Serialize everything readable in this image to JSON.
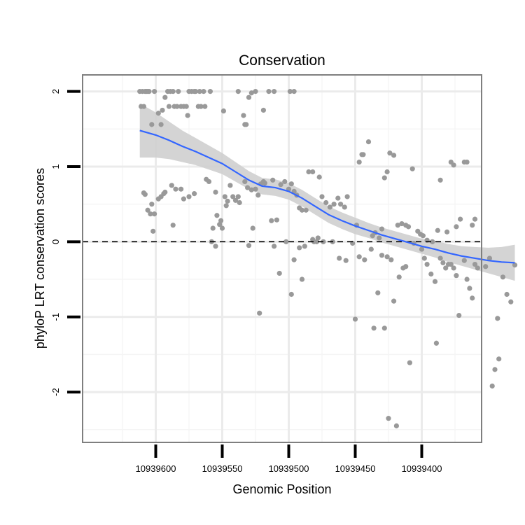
{
  "chart_data": {
    "type": "scatter",
    "title": "Conservation",
    "xlabel": "Genomic Position",
    "ylabel": "phyloP LRT conservation scores",
    "x_reversed": true,
    "xlim": [
      10939655,
      10939355
    ],
    "ylim": [
      -2.67,
      2.22
    ],
    "x_ticks": [
      10939600,
      10939550,
      10939500,
      10939450,
      10939400
    ],
    "x_tick_labels": [
      "10939600",
      "10939550",
      "10939500",
      "10939450",
      "10939400"
    ],
    "y_ticks": [
      2,
      1,
      0,
      -1,
      -2
    ],
    "y_tick_labels": [
      "2",
      "1",
      "0",
      "-1",
      "-2"
    ],
    "reference_line": {
      "y": 0,
      "style": "dashed"
    },
    "grid": true,
    "colors": {
      "points": "#999999",
      "smooth_line": "#3366ff",
      "ribbon": "#cfcfcf",
      "grid_major": "#ebebeb",
      "grid_minor": "#f5f5f5",
      "panel_border": "#7f7f7f"
    },
    "points": [
      [
        10939612,
        2.0
      ],
      [
        10939611,
        1.8
      ],
      [
        10939610,
        2.0
      ],
      [
        10939609,
        1.8
      ],
      [
        10939608,
        2.0
      ],
      [
        10939607,
        2.0
      ],
      [
        10939606,
        2.0
      ],
      [
        10939605,
        2.0
      ],
      [
        10939603,
        1.56
      ],
      [
        10939601,
        2.0
      ],
      [
        10939598,
        1.71
      ],
      [
        10939596,
        1.56
      ],
      [
        10939595,
        1.75
      ],
      [
        10939593,
        1.92
      ],
      [
        10939591,
        2.0
      ],
      [
        10939590,
        1.8
      ],
      [
        10939589,
        2.0
      ],
      [
        10939587,
        2.0
      ],
      [
        10939586,
        1.8
      ],
      [
        10939584,
        1.8
      ],
      [
        10939583,
        2.0
      ],
      [
        10939581,
        1.8
      ],
      [
        10939579,
        1.8
      ],
      [
        10939577,
        1.8
      ],
      [
        10939576,
        1.68
      ],
      [
        10939575,
        2.0
      ],
      [
        10939573,
        2.0
      ],
      [
        10939571,
        2.0
      ],
      [
        10939570,
        2.0
      ],
      [
        10939568,
        1.8
      ],
      [
        10939567,
        2.0
      ],
      [
        10939566,
        1.8
      ],
      [
        10939564,
        2.0
      ],
      [
        10939563,
        1.8
      ],
      [
        10939559,
        2.0
      ],
      [
        10939549,
        1.74
      ],
      [
        10939538,
        2.0
      ],
      [
        10939534,
        1.68
      ],
      [
        10939533,
        1.56
      ],
      [
        10939532,
        1.56
      ],
      [
        10939530,
        1.92
      ],
      [
        10939528,
        1.98
      ],
      [
        10939525,
        2.0
      ],
      [
        10939519,
        1.75
      ],
      [
        10939515,
        2.0
      ],
      [
        10939511,
        2.0
      ],
      [
        10939499,
        2.0
      ],
      [
        10939496,
        2.0
      ],
      [
        10939609,
        0.65
      ],
      [
        10939608,
        0.63
      ],
      [
        10939606,
        0.42
      ],
      [
        10939604,
        0.37
      ],
      [
        10939603,
        0.5
      ],
      [
        10939602,
        0.14
      ],
      [
        10939601,
        0.37
      ],
      [
        10939598,
        0.57
      ],
      [
        10939596,
        0.6
      ],
      [
        10939594,
        0.64
      ],
      [
        10939593,
        0.66
      ],
      [
        10939588,
        0.75
      ],
      [
        10939587,
        0.22
      ],
      [
        10939585,
        0.7
      ],
      [
        10939581,
        0.7
      ],
      [
        10939579,
        0.57
      ],
      [
        10939575,
        0.6
      ],
      [
        10939571,
        0.64
      ],
      [
        10939562,
        0.83
      ],
      [
        10939560,
        0.8
      ],
      [
        10939557,
        0.18
      ],
      [
        10939555,
        0.66
      ],
      [
        10939554,
        0.35
      ],
      [
        10939552,
        0.23
      ],
      [
        10939551,
        0.28
      ],
      [
        10939550,
        0.18
      ],
      [
        10939548,
        0.6
      ],
      [
        10939547,
        0.48
      ],
      [
        10939546,
        0.54
      ],
      [
        10939544,
        0.75
      ],
      [
        10939542,
        0.6
      ],
      [
        10939540,
        0.55
      ],
      [
        10939538,
        0.6
      ],
      [
        10939537,
        0.52
      ],
      [
        10939533,
        0.8
      ],
      [
        10939531,
        0.72
      ],
      [
        10939528,
        0.69
      ],
      [
        10939527,
        0.18
      ],
      [
        10939525,
        0.7
      ],
      [
        10939523,
        0.62
      ],
      [
        10939521,
        0.77
      ],
      [
        10939519,
        0.8
      ],
      [
        10939518,
        0.78
      ],
      [
        10939513,
        0.28
      ],
      [
        10939512,
        0.82
      ],
      [
        10939509,
        0.29
      ],
      [
        10939506,
        0.76
      ],
      [
        10939503,
        0.8
      ],
      [
        10939500,
        0.7
      ],
      [
        10939498,
        0.77
      ],
      [
        10939496,
        0.67
      ],
      [
        10939494,
        0.62
      ],
      [
        10939492,
        0.45
      ],
      [
        10939490,
        0.42
      ],
      [
        10939487,
        0.42
      ],
      [
        10939485,
        0.93
      ],
      [
        10939482,
        0.93
      ],
      [
        10939481,
        0.0
      ],
      [
        10939479,
        0.0
      ],
      [
        10939477,
        0.86
      ],
      [
        10939475,
        0.6
      ],
      [
        10939472,
        0.52
      ],
      [
        10939469,
        0.46
      ],
      [
        10939466,
        0.5
      ],
      [
        10939463,
        0.58
      ],
      [
        10939461,
        0.5
      ],
      [
        10939458,
        0.46
      ],
      [
        10939456,
        0.6
      ],
      [
        10939449,
        0.22
      ],
      [
        10939447,
        1.06
      ],
      [
        10939445,
        1.16
      ],
      [
        10939444,
        1.16
      ],
      [
        10939440,
        1.33
      ],
      [
        10939437,
        0.08
      ],
      [
        10939435,
        0.12
      ],
      [
        10939432,
        0.05
      ],
      [
        10939430,
        0.17
      ],
      [
        10939428,
        0.85
      ],
      [
        10939426,
        0.93
      ],
      [
        10939424,
        1.18
      ],
      [
        10939421,
        1.15
      ],
      [
        10939418,
        0.22
      ],
      [
        10939415,
        0.24
      ],
      [
        10939412,
        0.22
      ],
      [
        10939410,
        0.2
      ],
      [
        10939407,
        0.97
      ],
      [
        10939403,
        0.14
      ],
      [
        10939401,
        0.1
      ],
      [
        10939399,
        0.08
      ],
      [
        10939396,
        0.02
      ],
      [
        10939392,
        0.0
      ],
      [
        10939388,
        0.15
      ],
      [
        10939386,
        0.82
      ],
      [
        10939381,
        0.13
      ],
      [
        10939378,
        1.06
      ],
      [
        10939376,
        1.02
      ],
      [
        10939374,
        0.2
      ],
      [
        10939371,
        0.3
      ],
      [
        10939368,
        1.06
      ],
      [
        10939366,
        1.06
      ],
      [
        10939360,
        0.3
      ],
      [
        10939362,
        0.22
      ],
      [
        10939558,
        0.0
      ],
      [
        10939555,
        -0.06
      ],
      [
        10939530,
        -0.05
      ],
      [
        10939522,
        -0.95
      ],
      [
        10939511,
        -0.06
      ],
      [
        10939507,
        -0.42
      ],
      [
        10939502,
        0.0
      ],
      [
        10939498,
        -0.7
      ],
      [
        10939496,
        -0.24
      ],
      [
        10939492,
        -0.08
      ],
      [
        10939490,
        -0.5
      ],
      [
        10939488,
        -0.06
      ],
      [
        10939482,
        0.03
      ],
      [
        10939478,
        0.05
      ],
      [
        10939474,
        0.0
      ],
      [
        10939467,
        0.0
      ],
      [
        10939462,
        -0.22
      ],
      [
        10939457,
        -0.25
      ],
      [
        10939452,
        -0.02
      ],
      [
        10939450,
        -1.03
      ],
      [
        10939447,
        -0.2
      ],
      [
        10939443,
        -0.24
      ],
      [
        10939438,
        -0.1
      ],
      [
        10939436,
        -1.15
      ],
      [
        10939433,
        -0.68
      ],
      [
        10939430,
        -0.18
      ],
      [
        10939428,
        -1.15
      ],
      [
        10939426,
        -0.2
      ],
      [
        10939425,
        -2.35
      ],
      [
        10939423,
        -0.24
      ],
      [
        10939421,
        -0.79
      ],
      [
        10939419,
        -2.45
      ],
      [
        10939417,
        -0.47
      ],
      [
        10939414,
        -0.35
      ],
      [
        10939412,
        -0.33
      ],
      [
        10939409,
        -1.61
      ],
      [
        10939406,
        -0.02
      ],
      [
        10939400,
        -0.1
      ],
      [
        10939398,
        -0.22
      ],
      [
        10939396,
        -0.3
      ],
      [
        10939393,
        -0.43
      ],
      [
        10939390,
        -0.53
      ],
      [
        10939389,
        -1.35
      ],
      [
        10939386,
        -0.22
      ],
      [
        10939384,
        -0.28
      ],
      [
        10939382,
        -0.35
      ],
      [
        10939380,
        -0.3
      ],
      [
        10939378,
        -0.3
      ],
      [
        10939376,
        -0.35
      ],
      [
        10939374,
        -0.45
      ],
      [
        10939372,
        -0.98
      ],
      [
        10939368,
        -0.25
      ],
      [
        10939366,
        -0.5
      ],
      [
        10939364,
        -0.62
      ],
      [
        10939362,
        -0.75
      ],
      [
        10939360,
        -0.3
      ],
      [
        10939358,
        -0.35
      ],
      [
        10939352,
        -0.33
      ],
      [
        10939349,
        -0.22
      ],
      [
        10939347,
        -1.92
      ],
      [
        10939345,
        -1.7
      ],
      [
        10939343,
        -1.02
      ],
      [
        10939342,
        -1.56
      ],
      [
        10939339,
        -0.47
      ],
      [
        10939336,
        -0.7
      ],
      [
        10939333,
        -0.8
      ],
      [
        10939330,
        -0.31
      ]
    ],
    "smooth_line": [
      [
        10939612,
        1.48
      ],
      [
        10939600,
        1.42
      ],
      [
        10939590,
        1.35
      ],
      [
        10939580,
        1.27
      ],
      [
        10939570,
        1.2
      ],
      [
        10939560,
        1.12
      ],
      [
        10939550,
        1.04
      ],
      [
        10939540,
        0.93
      ],
      [
        10939530,
        0.82
      ],
      [
        10939520,
        0.74
      ],
      [
        10939510,
        0.72
      ],
      [
        10939500,
        0.67
      ],
      [
        10939490,
        0.58
      ],
      [
        10939480,
        0.47
      ],
      [
        10939470,
        0.36
      ],
      [
        10939460,
        0.28
      ],
      [
        10939450,
        0.21
      ],
      [
        10939440,
        0.15
      ],
      [
        10939430,
        0.09
      ],
      [
        10939420,
        0.04
      ],
      [
        10939410,
        -0.01
      ],
      [
        10939400,
        -0.06
      ],
      [
        10939390,
        -0.1
      ],
      [
        10939380,
        -0.15
      ],
      [
        10939370,
        -0.19
      ],
      [
        10939360,
        -0.22
      ],
      [
        10939350,
        -0.25
      ],
      [
        10939340,
        -0.27
      ],
      [
        10939330,
        -0.28
      ]
    ],
    "ribbon_halfwidth": [
      0.36,
      0.3,
      0.25,
      0.21,
      0.18,
      0.16,
      0.14,
      0.13,
      0.12,
      0.11,
      0.11,
      0.11,
      0.11,
      0.11,
      0.11,
      0.11,
      0.11,
      0.1,
      0.1,
      0.1,
      0.1,
      0.1,
      0.11,
      0.12,
      0.13,
      0.15,
      0.17,
      0.2,
      0.24
    ]
  }
}
